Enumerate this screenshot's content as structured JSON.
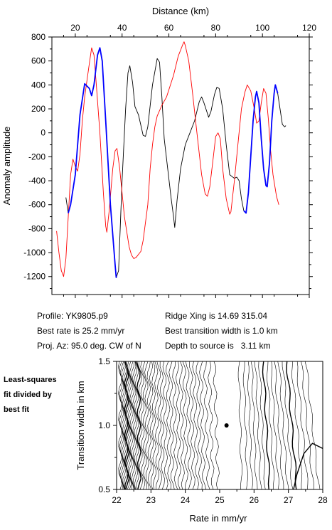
{
  "info": {
    "profile": "Profile: YK9805.p9",
    "best_rate": "Best rate is 25.2 mm/yr",
    "proj_az": "Proj. Az: 95.0 deg. CW of N",
    "ridge_xing": "Ridge Xing is 14.69 315.04",
    "best_width": "Best transition width is 1.0 km",
    "depth": "Depth to source is   3.11 km"
  },
  "note": {
    "line1": "Least-squares",
    "line2": "fit divided by",
    "line3": "best fit"
  },
  "colors": {
    "observed": "#000000",
    "model": "#ff0000",
    "fit_window": "#0000ff",
    "contour": "#000000"
  },
  "chart_data": [
    {
      "type": "line",
      "xlabel": "Distance (km)",
      "ylabel": "Anomaly amplitude",
      "xlim": [
        10,
        120
      ],
      "ylim": [
        -1350,
        800
      ],
      "xticks": [
        20,
        40,
        60,
        80,
        100,
        120
      ],
      "yticks": [
        -1200,
        -1000,
        -800,
        -600,
        -400,
        -200,
        0,
        200,
        400,
        600,
        800
      ],
      "x_axis_position": "top",
      "grid": false,
      "series": [
        {
          "color": "black",
          "points": [
            [
              16,
              -540
            ],
            [
              17,
              -670
            ],
            [
              18,
              -600
            ],
            [
              20,
              -350
            ],
            [
              22,
              150
            ],
            [
              24,
              410
            ],
            [
              26,
              370
            ],
            [
              27,
              310
            ],
            [
              28,
              400
            ],
            [
              29.5,
              650
            ],
            [
              30.5,
              710
            ],
            [
              31.5,
              600
            ],
            [
              33,
              100
            ],
            [
              35,
              -600
            ],
            [
              37,
              -1100
            ],
            [
              37.5,
              -1210
            ],
            [
              38.5,
              -1150
            ],
            [
              40,
              -400
            ],
            [
              41.5,
              200
            ],
            [
              42.5,
              500
            ],
            [
              43.3,
              560
            ],
            [
              44.5,
              420
            ],
            [
              45.5,
              220
            ],
            [
              47,
              150
            ],
            [
              49,
              -20
            ],
            [
              50,
              -30
            ],
            [
              51,
              50
            ],
            [
              53,
              400
            ],
            [
              55,
              620
            ],
            [
              56,
              590
            ],
            [
              57,
              300
            ],
            [
              58,
              -50
            ],
            [
              59.5,
              -300
            ],
            [
              61,
              -550
            ],
            [
              62,
              -700
            ],
            [
              62.5,
              -790
            ],
            [
              63.5,
              -560
            ],
            [
              65,
              -300
            ],
            [
              67,
              -100
            ],
            [
              69,
              0
            ],
            [
              71,
              100
            ],
            [
              73,
              260
            ],
            [
              74,
              300
            ],
            [
              75,
              250
            ],
            [
              77,
              130
            ],
            [
              78,
              180
            ],
            [
              79.5,
              320
            ],
            [
              80.5,
              380
            ],
            [
              81.5,
              370
            ],
            [
              83,
              200
            ],
            [
              84.5,
              -100
            ],
            [
              86,
              -350
            ],
            [
              88,
              -380
            ],
            [
              89,
              -370
            ],
            [
              90,
              -400
            ],
            [
              91,
              -550
            ],
            [
              92,
              -650
            ],
            [
              93,
              -670
            ],
            [
              94,
              -500
            ],
            [
              95,
              -200
            ],
            [
              96,
              100
            ],
            [
              97,
              300
            ],
            [
              97.5,
              345
            ],
            [
              98.5,
              250
            ],
            [
              99.5,
              -50
            ],
            [
              100.5,
              -300
            ],
            [
              101.5,
              -440
            ],
            [
              102,
              -450
            ],
            [
              103,
              -250
            ],
            [
              104,
              100
            ],
            [
              105,
              330
            ],
            [
              105.5,
              400
            ],
            [
              106.5,
              330
            ],
            [
              107.5,
              200
            ],
            [
              108.5,
              70
            ],
            [
              109.5,
              50
            ],
            [
              110,
              60
            ]
          ]
        },
        {
          "color": "red",
          "points": [
            [
              12,
              -820
            ],
            [
              13,
              -1000
            ],
            [
              14,
              -1150
            ],
            [
              15,
              -1200
            ],
            [
              16,
              -1050
            ],
            [
              17,
              -700
            ],
            [
              18,
              -350
            ],
            [
              19,
              -220
            ],
            [
              20,
              -280
            ],
            [
              21,
              -320
            ],
            [
              22,
              -180
            ],
            [
              23,
              100
            ],
            [
              24,
              300
            ],
            [
              26,
              580
            ],
            [
              27,
              710
            ],
            [
              28,
              650
            ],
            [
              29,
              400
            ],
            [
              30.5,
              0
            ],
            [
              32,
              -500
            ],
            [
              33,
              -780
            ],
            [
              33.5,
              -830
            ],
            [
              34.5,
              -650
            ],
            [
              36,
              -300
            ],
            [
              37,
              -150
            ],
            [
              37.8,
              -130
            ],
            [
              39,
              -300
            ],
            [
              41,
              -700
            ],
            [
              43,
              -950
            ],
            [
              44,
              -1020
            ],
            [
              45,
              -1050
            ],
            [
              46,
              -1040
            ],
            [
              48,
              -990
            ],
            [
              49,
              -900
            ],
            [
              51,
              -600
            ],
            [
              52,
              -300
            ],
            [
              53,
              -100
            ],
            [
              54,
              50
            ],
            [
              55,
              140
            ],
            [
              57,
              230
            ],
            [
              59,
              300
            ],
            [
              62,
              480
            ],
            [
              64,
              640
            ],
            [
              66,
              740
            ],
            [
              66.5,
              760
            ],
            [
              67,
              730
            ],
            [
              68.5,
              600
            ],
            [
              70,
              350
            ],
            [
              72,
              0
            ],
            [
              74,
              -350
            ],
            [
              75.5,
              -510
            ],
            [
              76.5,
              -530
            ],
            [
              77.5,
              -450
            ],
            [
              79,
              -200
            ],
            [
              80,
              -30
            ],
            [
              81,
              0
            ],
            [
              82,
              -50
            ],
            [
              83,
              -300
            ],
            [
              84.5,
              -550
            ],
            [
              86,
              -680
            ],
            [
              86.5,
              -660
            ],
            [
              88,
              -400
            ],
            [
              89.5,
              -100
            ],
            [
              91,
              200
            ],
            [
              92.5,
              340
            ],
            [
              93.5,
              400
            ],
            [
              95,
              350
            ],
            [
              96.5,
              200
            ],
            [
              97.5,
              80
            ],
            [
              98.5,
              100
            ],
            [
              99.5,
              250
            ],
            [
              100.5,
              370
            ],
            [
              101.5,
              330
            ],
            [
              102.5,
              120
            ],
            [
              103.5,
              -150
            ],
            [
              104.5,
              -350
            ],
            [
              106,
              -530
            ],
            [
              107,
              -600
            ]
          ]
        },
        {
          "color": "blue",
          "points": [
            [
              17,
              -670
            ],
            [
              18,
              -600
            ],
            [
              20,
              -350
            ],
            [
              22,
              150
            ],
            [
              24,
              410
            ],
            [
              26,
              370
            ],
            [
              27,
              310
            ],
            [
              28,
              400
            ],
            [
              29.5,
              650
            ],
            [
              30.5,
              710
            ],
            [
              31.5,
              600
            ],
            [
              33,
              100
            ],
            [
              35,
              -600
            ],
            [
              37,
              -1100
            ],
            [
              37.5,
              -1210
            ]
          ]
        },
        {
          "color": "blue",
          "points": [
            [
              92,
              -650
            ],
            [
              93,
              -670
            ],
            [
              94,
              -500
            ],
            [
              95,
              -200
            ],
            [
              96,
              100
            ],
            [
              97,
              300
            ],
            [
              97.5,
              345
            ],
            [
              98.5,
              250
            ],
            [
              99.5,
              -50
            ],
            [
              100.5,
              -300
            ],
            [
              101.5,
              -440
            ],
            [
              102,
              -450
            ],
            [
              103,
              -250
            ],
            [
              104,
              100
            ],
            [
              105,
              330
            ],
            [
              105.5,
              400
            ],
            [
              106.5,
              330
            ]
          ]
        }
      ]
    },
    {
      "type": "contour",
      "xlabel": "Rate in mm/yr",
      "ylabel": "Transition width in km",
      "xlim": [
        22,
        28
      ],
      "ylim": [
        0.5,
        1.5
      ],
      "xticks": [
        22,
        23,
        24,
        25,
        26,
        27,
        28
      ],
      "yticks": [
        0.5,
        1.0,
        1.5
      ],
      "grid": false,
      "best_fit": [
        25.2,
        1.0
      ],
      "contour_rates": [
        22.1,
        22.13,
        22.16,
        22.19,
        22.22,
        22.25,
        22.28,
        22.31,
        22.34,
        22.37,
        22.4,
        22.44,
        22.48,
        22.52,
        22.56,
        22.6,
        22.65,
        22.7,
        22.76,
        22.82,
        22.88,
        22.95,
        23.02,
        23.09,
        23.17,
        23.25,
        23.33,
        23.42,
        23.51,
        23.6,
        23.7,
        23.8,
        23.9,
        24.0,
        24.1,
        24.2,
        24.3,
        24.4,
        24.5,
        24.62,
        24.75,
        24.9,
        25.6,
        25.75,
        25.88,
        26.0,
        26.12,
        26.24,
        26.36,
        26.48,
        26.6,
        26.72,
        26.85,
        26.98,
        27.1,
        27.25,
        27.4,
        27.55,
        27.7
      ],
      "bold_rates": [
        22.3,
        22.65,
        26.35,
        27.1
      ]
    }
  ]
}
